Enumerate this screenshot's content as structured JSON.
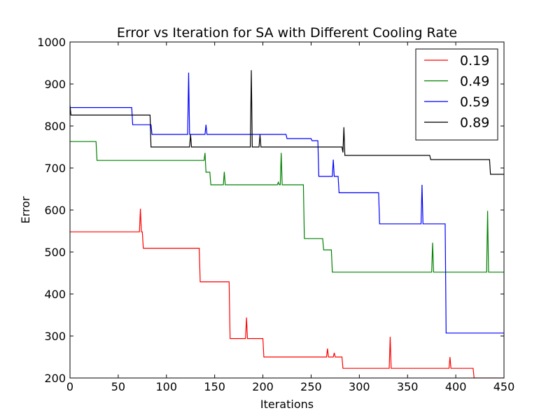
{
  "chart_data": {
    "type": "line",
    "title": "Error vs Iteration for SA with Different Cooling Rate",
    "xlabel": "Iterations",
    "ylabel": "Error",
    "xlim": [
      0,
      450
    ],
    "ylim": [
      200,
      1000
    ],
    "xticks": [
      0,
      50,
      100,
      150,
      200,
      250,
      300,
      350,
      400,
      450
    ],
    "yticks": [
      200,
      300,
      400,
      500,
      600,
      700,
      800,
      900,
      1000
    ],
    "grid": false,
    "legend_position": "top-right",
    "series": [
      {
        "name": "0.19",
        "color": "#ff0000",
        "points": [
          [
            0,
            548
          ],
          [
            72,
            548
          ],
          [
            73,
            603
          ],
          [
            74,
            548
          ],
          [
            75,
            548
          ],
          [
            76,
            509
          ],
          [
            134,
            509
          ],
          [
            135,
            429
          ],
          [
            165,
            429
          ],
          [
            166,
            294
          ],
          [
            182,
            294
          ],
          [
            183,
            344
          ],
          [
            184,
            294
          ],
          [
            200,
            294
          ],
          [
            201,
            250
          ],
          [
            266,
            250
          ],
          [
            267,
            270
          ],
          [
            268,
            250
          ],
          [
            273,
            250
          ],
          [
            274,
            260
          ],
          [
            275,
            250
          ],
          [
            282,
            250
          ],
          [
            283,
            223
          ],
          [
            331,
            223
          ],
          [
            332,
            298
          ],
          [
            333,
            223
          ],
          [
            393,
            223
          ],
          [
            394,
            250
          ],
          [
            395,
            223
          ],
          [
            418,
            223
          ],
          [
            419,
            200
          ],
          [
            450,
            200
          ]
        ]
      },
      {
        "name": "0.49",
        "color": "#008000",
        "points": [
          [
            0,
            763
          ],
          [
            27,
            763
          ],
          [
            28,
            718
          ],
          [
            139,
            718
          ],
          [
            140,
            736
          ],
          [
            141,
            690
          ],
          [
            145,
            690
          ],
          [
            146,
            660
          ],
          [
            159,
            660
          ],
          [
            160,
            691
          ],
          [
            161,
            660
          ],
          [
            215,
            660
          ],
          [
            216,
            666
          ],
          [
            217,
            660
          ],
          [
            218,
            660
          ],
          [
            219,
            736
          ],
          [
            220,
            660
          ],
          [
            242,
            660
          ],
          [
            243,
            532
          ],
          [
            262,
            532
          ],
          [
            263,
            505
          ],
          [
            271,
            505
          ],
          [
            272,
            452
          ],
          [
            375,
            452
          ],
          [
            376,
            522
          ],
          [
            377,
            452
          ],
          [
            432,
            452
          ],
          [
            433,
            598
          ],
          [
            434,
            452
          ],
          [
            450,
            452
          ]
        ]
      },
      {
        "name": "0.59",
        "color": "#0000ff",
        "points": [
          [
            0,
            844
          ],
          [
            64,
            844
          ],
          [
            65,
            803
          ],
          [
            84,
            803
          ],
          [
            85,
            780
          ],
          [
            122,
            780
          ],
          [
            123,
            927
          ],
          [
            124,
            780
          ],
          [
            140,
            780
          ],
          [
            141,
            803
          ],
          [
            142,
            780
          ],
          [
            224,
            780
          ],
          [
            225,
            770
          ],
          [
            250,
            770
          ],
          [
            251,
            765
          ],
          [
            257,
            765
          ],
          [
            258,
            680
          ],
          [
            272,
            680
          ],
          [
            273,
            720
          ],
          [
            274,
            680
          ],
          [
            278,
            680
          ],
          [
            279,
            641
          ],
          [
            320,
            641
          ],
          [
            321,
            567
          ],
          [
            364,
            567
          ],
          [
            365,
            660
          ],
          [
            366,
            567
          ],
          [
            389,
            567
          ],
          [
            390,
            307
          ],
          [
            450,
            307
          ]
        ]
      },
      {
        "name": "0.89",
        "color": "#000000",
        "points": [
          [
            0,
            850
          ],
          [
            1,
            826
          ],
          [
            83,
            826
          ],
          [
            84,
            750
          ],
          [
            124,
            750
          ],
          [
            125,
            780
          ],
          [
            126,
            750
          ],
          [
            187,
            750
          ],
          [
            188,
            933
          ],
          [
            189,
            750
          ],
          [
            196,
            750
          ],
          [
            197,
            779
          ],
          [
            198,
            750
          ],
          [
            282,
            750
          ],
          [
            283,
            737
          ],
          [
            284,
            797
          ],
          [
            285,
            730
          ],
          [
            373,
            730
          ],
          [
            374,
            720
          ],
          [
            435,
            720
          ],
          [
            436,
            685
          ],
          [
            450,
            685
          ]
        ]
      }
    ]
  }
}
